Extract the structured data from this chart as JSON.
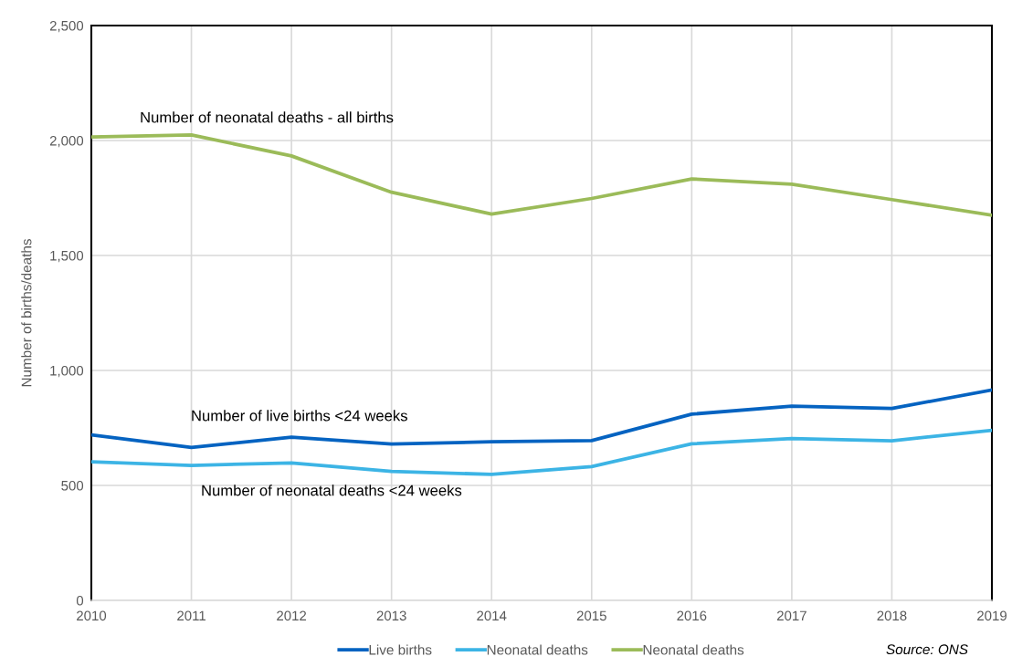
{
  "chart_data": {
    "type": "line",
    "ylabel": "Number of births/deaths",
    "x": [
      2010,
      2011,
      2012,
      2013,
      2014,
      2015,
      2016,
      2017,
      2018,
      2019
    ],
    "xlim": [
      2010,
      2019
    ],
    "xticks": [
      2010,
      2011,
      2012,
      2013,
      2014,
      2015,
      2016,
      2017,
      2018,
      2019
    ],
    "ylim": [
      0,
      2500
    ],
    "yticks": [
      0,
      500,
      {
        "value": 1000,
        "label": "1,000"
      },
      {
        "value": 1500,
        "label": "1,500"
      },
      {
        "value": 2000,
        "label": "2,000"
      },
      {
        "value": 2500,
        "label": "2,500"
      }
    ],
    "grid": true,
    "legend": "bottom",
    "line_style": "solid",
    "series": [
      {
        "name": "Live births",
        "color": "#0563c1",
        "values": [
          720,
          665,
          710,
          680,
          690,
          695,
          810,
          845,
          835,
          915
        ]
      },
      {
        "name": "Neonatal deaths",
        "color": "#3cb4e5",
        "values": [
          603,
          587,
          598,
          561,
          548,
          582,
          681,
          704,
          694,
          740
        ]
      },
      {
        "name": "Neonatal deaths",
        "color": "#9bbb59",
        "values": [
          2015,
          2024,
          1933,
          1775,
          1680,
          1748,
          1833,
          1810,
          1743,
          1675
        ]
      }
    ],
    "annotations": [
      "Number of neonatal deaths - all births",
      "Number of live births <24 weeks",
      "Number of neonatal deaths <24 weeks",
      "Source: ONS"
    ]
  }
}
